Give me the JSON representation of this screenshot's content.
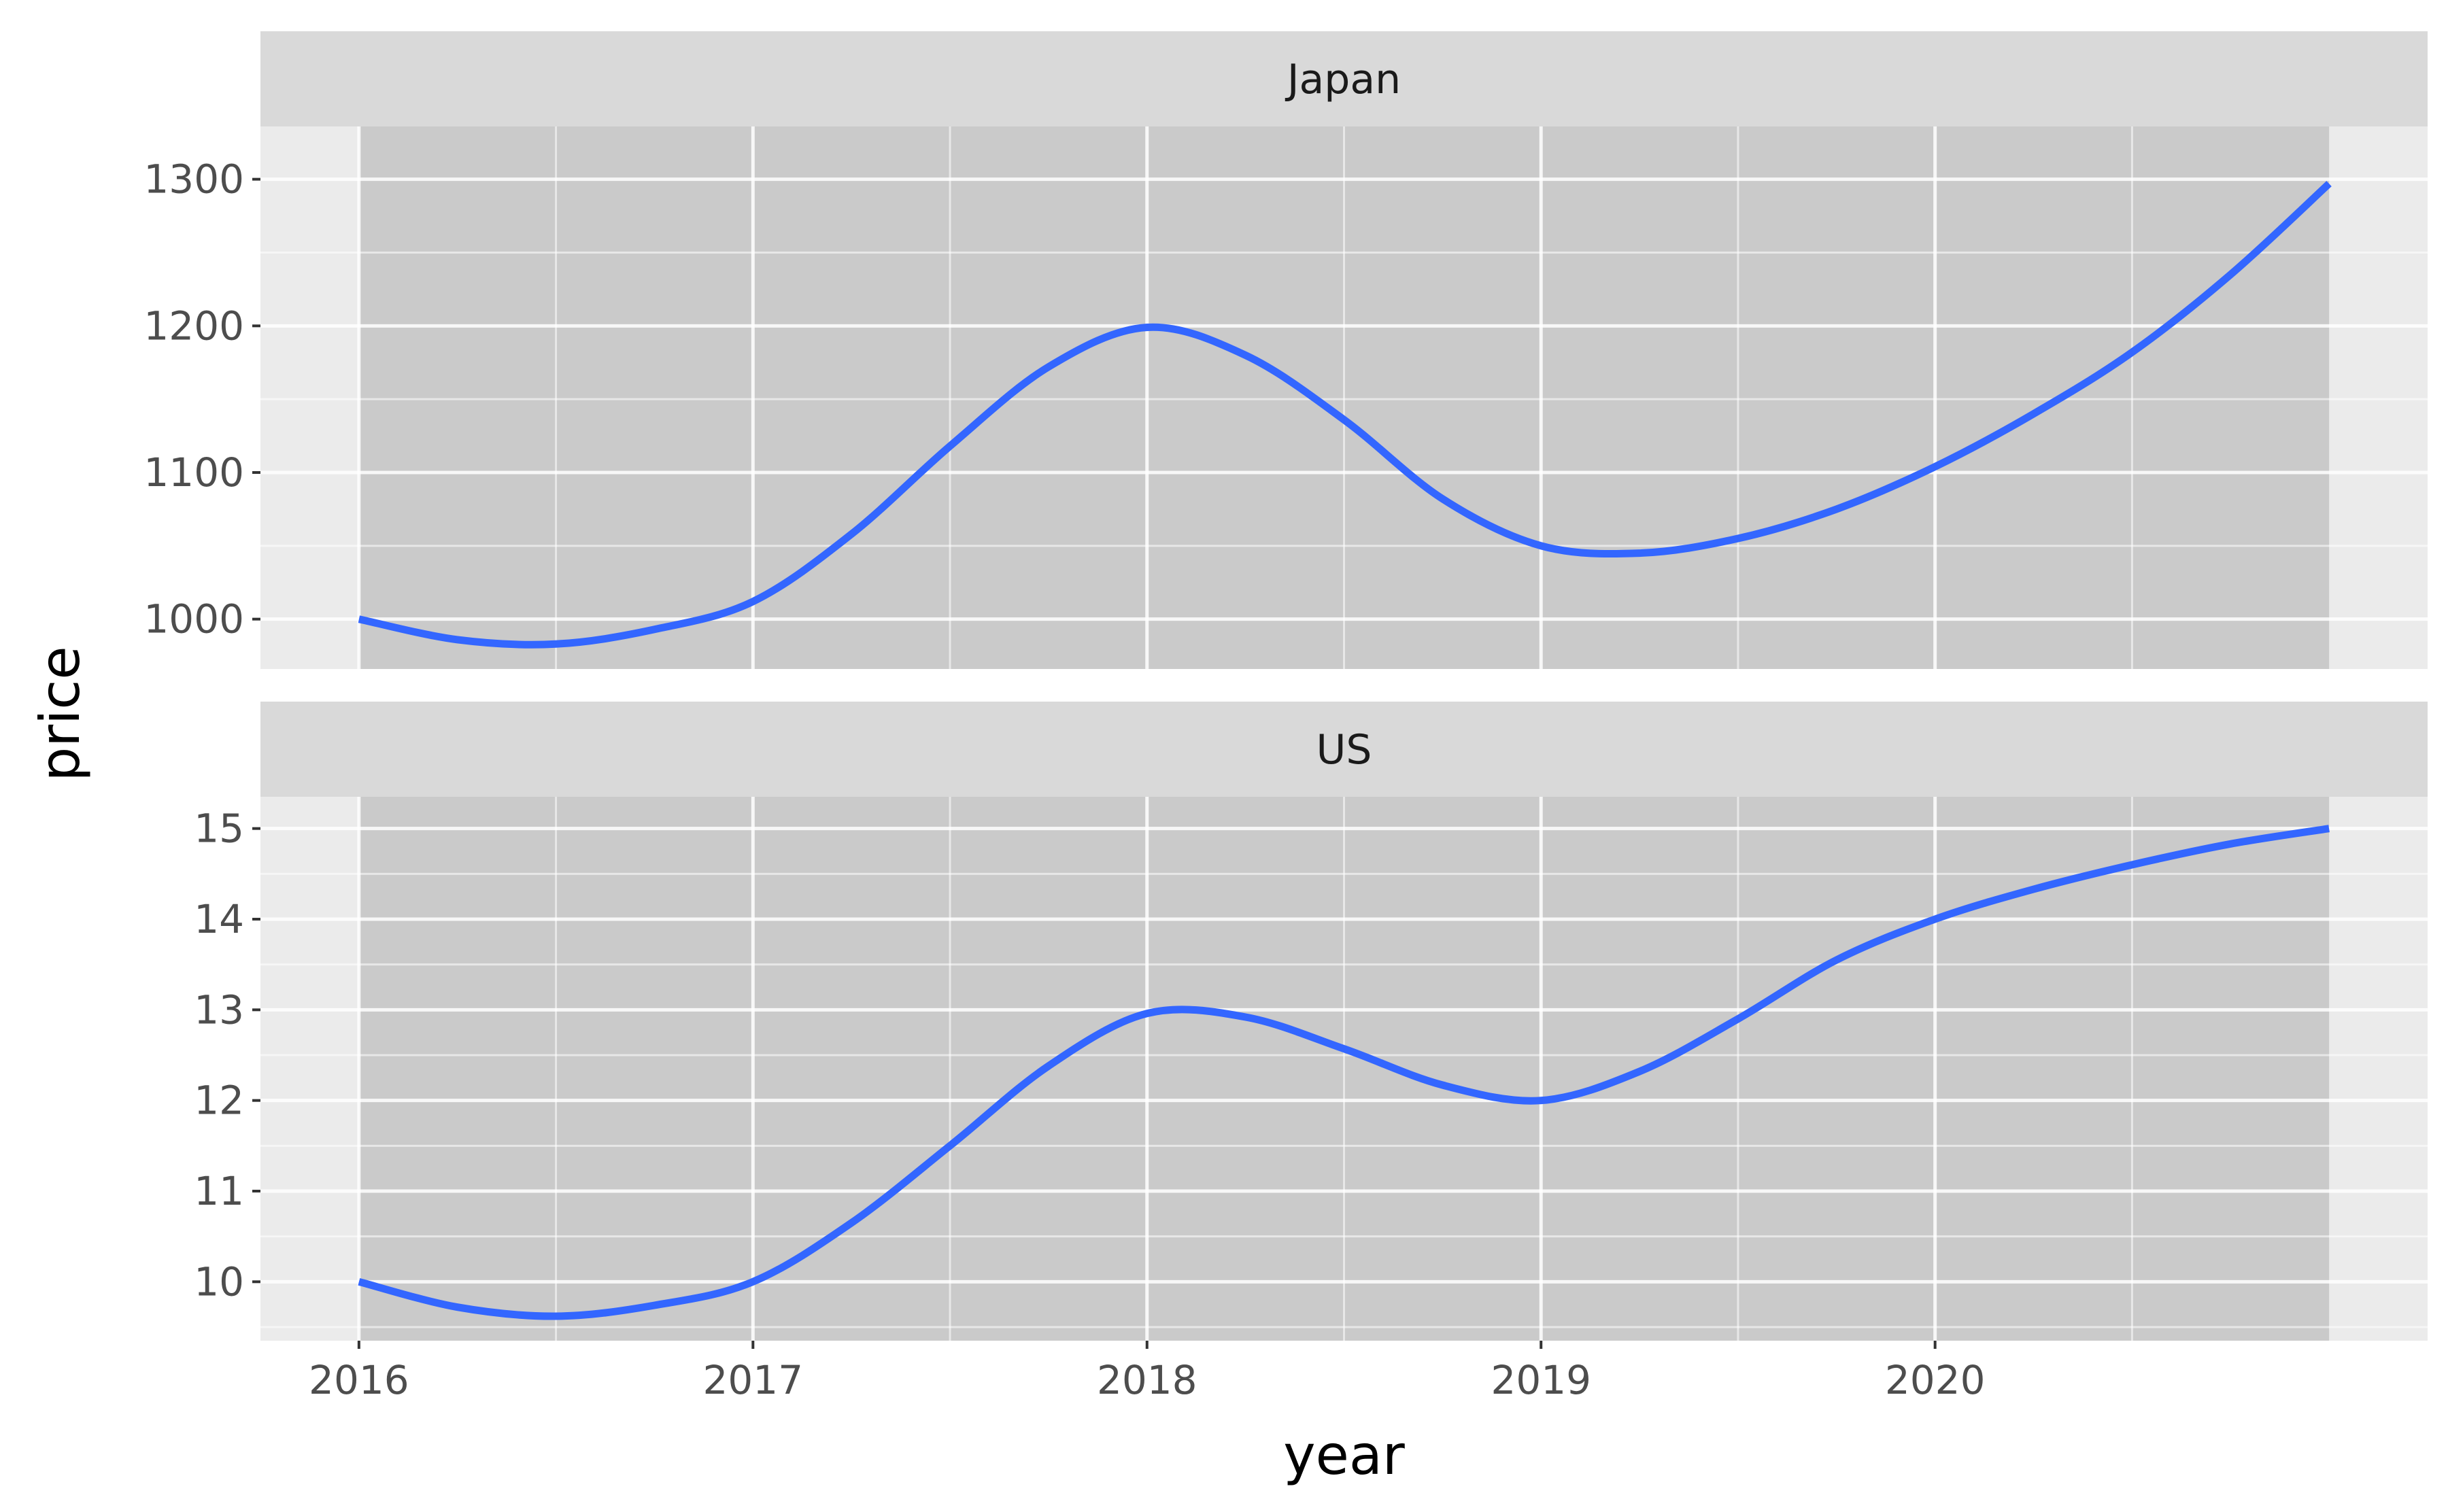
{
  "colors": {
    "panel_background": "#ebebeb",
    "strip_background": "#d9d9d9",
    "shaded_band": "#cacaca",
    "gridline": "#ffffff",
    "line": "#3366ff",
    "tick_label": "#4d4d4d",
    "axis_title": "#000000"
  },
  "chart_data": {
    "type": "line",
    "facet_layout": "vertical, shared x axis",
    "xlabel": "year",
    "ylabel": "price",
    "x_ticks": [
      "2016",
      "2017",
      "2018",
      "2019",
      "2020"
    ],
    "xlim": [
      2015.75,
      2021.25
    ],
    "shaded_band": [
      2016,
      2021
    ],
    "grid": true,
    "legend": "none",
    "panels": [
      {
        "strip": "Japan",
        "ylim": [
          966,
          1336
        ],
        "y_ticks": [
          1000,
          1100,
          1200,
          1300
        ],
        "series": [
          {
            "x": [
              2016.0,
              2016.25,
              2016.5,
              2016.75,
              2017.0,
              2017.25,
              2017.5,
              2017.75,
              2018.0,
              2018.25,
              2018.5,
              2018.75,
              2019.0,
              2019.25,
              2019.5,
              2019.75,
              2020.0,
              2020.25,
              2020.5,
              2020.75,
              2021.0
            ],
            "y": [
              1000,
              986,
              983,
              993,
              1012,
              1058,
              1118,
              1172,
              1199,
              1180,
              1136,
              1082,
              1050,
              1045,
              1055,
              1075,
              1104,
              1140,
              1182,
              1235,
              1297
            ]
          }
        ]
      },
      {
        "strip": "US",
        "ylim": [
          9.35,
          15.35
        ],
        "y_ticks": [
          10,
          11,
          12,
          13,
          14,
          15
        ],
        "series": [
          {
            "x": [
              2016.0,
              2016.25,
              2016.5,
              2016.75,
              2017.0,
              2017.25,
              2017.5,
              2017.75,
              2018.0,
              2018.25,
              2018.5,
              2018.75,
              2019.0,
              2019.25,
              2019.5,
              2019.75,
              2020.0,
              2020.25,
              2020.5,
              2020.75,
              2021.0
            ],
            "y": [
              10.0,
              9.72,
              9.62,
              9.74,
              10.0,
              10.65,
              11.5,
              12.38,
              12.96,
              12.92,
              12.57,
              12.17,
              12.0,
              12.32,
              12.9,
              13.55,
              14.0,
              14.33,
              14.6,
              14.83,
              15.0
            ]
          }
        ]
      }
    ]
  }
}
